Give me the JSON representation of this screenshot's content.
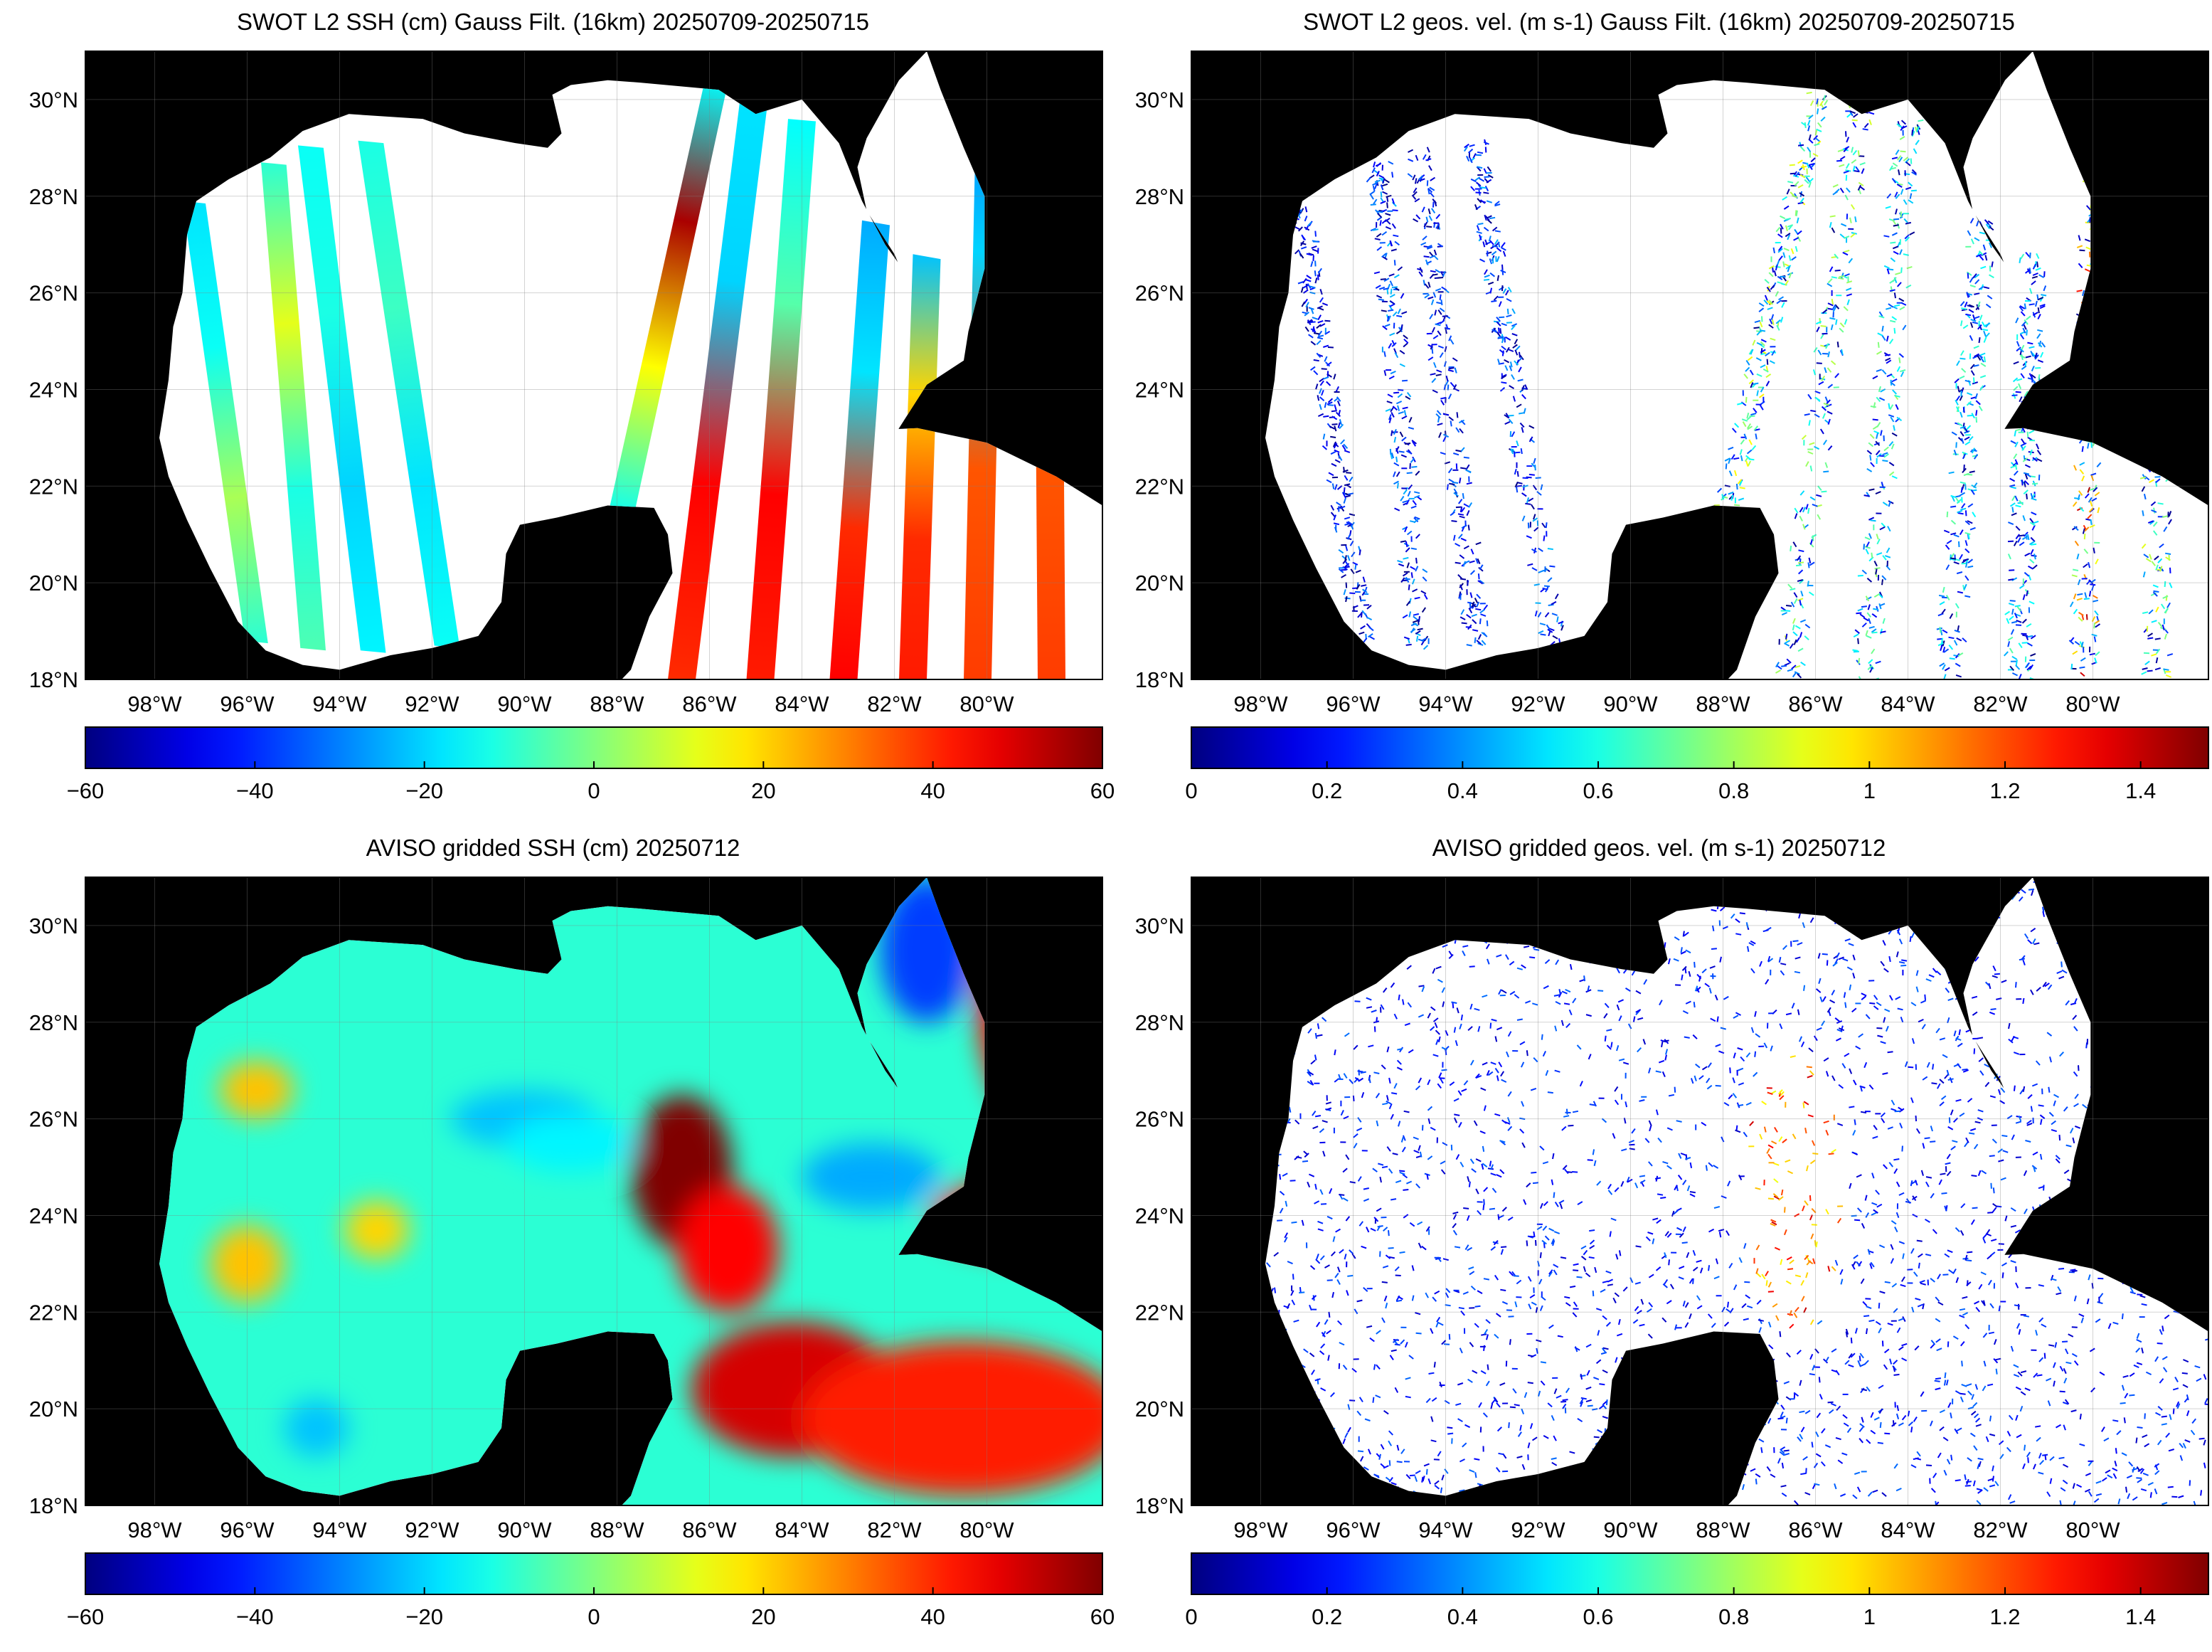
{
  "panels": [
    {
      "id": "swot_ssh",
      "title": "SWOT L2 SSH (cm) Gauss Filt. (16km) 20250709-20250715",
      "kind": "ssh",
      "source": "swot",
      "colorbar": {
        "min": -60,
        "max": 60,
        "ticks": [
          "−60",
          "−40",
          "−20",
          "0",
          "20",
          "40",
          "60"
        ],
        "colormap": "jet"
      }
    },
    {
      "id": "swot_vel",
      "title": "SWOT L2 geos. vel. (m s-1) Gauss Filt. (16km) 20250709-20250715",
      "kind": "vel",
      "source": "swot",
      "colorbar": {
        "min": 0,
        "max": 1.5,
        "ticks": [
          "0",
          "0.2",
          "0.4",
          "0.6",
          "0.8",
          "1",
          "1.2",
          "1.4"
        ],
        "colormap": "jet"
      }
    },
    {
      "id": "aviso_ssh",
      "title": "AVISO gridded SSH (cm) 20250712",
      "kind": "ssh",
      "source": "aviso",
      "colorbar": {
        "min": -60,
        "max": 60,
        "ticks": [
          "−60",
          "−40",
          "−20",
          "0",
          "20",
          "40",
          "60"
        ],
        "colormap": "jet"
      }
    },
    {
      "id": "aviso_vel",
      "title": "AVISO gridded geos. vel. (m s-1)  20250712",
      "kind": "vel",
      "source": "aviso",
      "colorbar": {
        "min": 0,
        "max": 1.5,
        "ticks": [
          "0",
          "0.2",
          "0.4",
          "0.6",
          "0.8",
          "1",
          "1.2",
          "1.4"
        ],
        "colormap": "jet"
      }
    }
  ],
  "map": {
    "region": "Gulf of Mexico",
    "lon_range": [
      -99.5,
      -77.5
    ],
    "lat_range": [
      18,
      31
    ],
    "lat_ticks": [
      "18°N",
      "20°N",
      "22°N",
      "24°N",
      "26°N",
      "28°N",
      "30°N"
    ],
    "lon_ticks": [
      "98°W",
      "96°W",
      "94°W",
      "92°W",
      "90°W",
      "88°W",
      "86°W",
      "84°W",
      "82°W",
      "80°W"
    ],
    "land_color": "#000000",
    "no_data_color": "#ffffff",
    "grid": true
  }
}
